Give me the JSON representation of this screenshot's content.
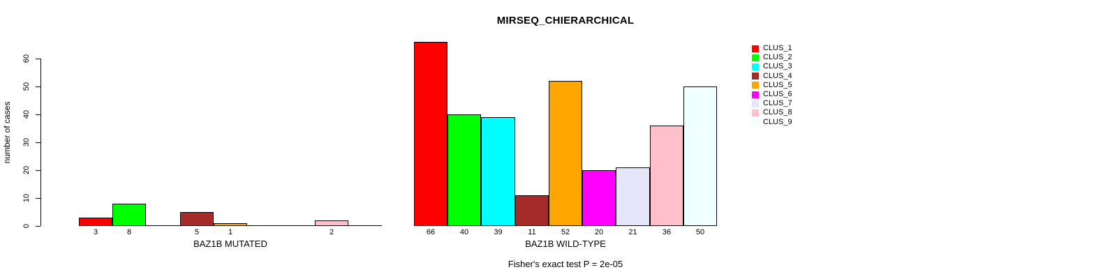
{
  "title": "MIRSEQ_CHIERARCHICAL",
  "subtitle": "Fisher's exact test P = 2e-05",
  "ylabel": "number of cases",
  "palette": [
    "#FF0000",
    "#00FF00",
    "#00FFFF",
    "#A52A2A",
    "#FFA500",
    "#FF00FF",
    "#E6E6FA",
    "#FFC0CB",
    "#F0FFFF"
  ],
  "legend": {
    "position": "right",
    "entries": [
      {
        "label": "CLUS_1",
        "color": "#FF0000"
      },
      {
        "label": "CLUS_2",
        "color": "#00FF00"
      },
      {
        "label": "CLUS_3",
        "color": "#00FFFF"
      },
      {
        "label": "CLUS_4",
        "color": "#A52A2A"
      },
      {
        "label": "CLUS_5",
        "color": "#FFA500"
      },
      {
        "label": "CLUS_6",
        "color": "#FF00FF"
      },
      {
        "label": "CLUS_7",
        "color": "#E6E6FA"
      },
      {
        "label": "CLUS_8",
        "color": "#FFC0CB"
      },
      {
        "label": "CLUS_9",
        "color": "#F0FFFF"
      }
    ]
  },
  "chart_data": [
    {
      "type": "bar",
      "title": "",
      "xlabel": "BAZ1B MUTATED",
      "ylabel": "number of cases",
      "categories": [
        "CLUS_1",
        "CLUS_2",
        "CLUS_3",
        "CLUS_4",
        "CLUS_5",
        "CLUS_6",
        "CLUS_7",
        "CLUS_8",
        "CLUS_9"
      ],
      "values": [
        3,
        8,
        0,
        5,
        1,
        0,
        0,
        2,
        0
      ],
      "bar_labels": [
        "3",
        "8",
        "",
        "5",
        "1",
        "",
        "",
        "2",
        ""
      ],
      "ylim": [
        0,
        66
      ],
      "yticks": [
        0,
        10,
        20,
        30,
        40,
        50,
        60
      ],
      "grid": false
    },
    {
      "type": "bar",
      "title": "MIRSEQ_CHIERARCHICAL",
      "xlabel": "BAZ1B WILD-TYPE",
      "ylabel": "",
      "categories": [
        "CLUS_1",
        "CLUS_2",
        "CLUS_3",
        "CLUS_4",
        "CLUS_5",
        "CLUS_6",
        "CLUS_7",
        "CLUS_8",
        "CLUS_9"
      ],
      "values": [
        66,
        40,
        39,
        11,
        52,
        20,
        21,
        36,
        50
      ],
      "bar_labels": [
        "66",
        "40",
        "39",
        "11",
        "52",
        "20",
        "21",
        "36",
        "50"
      ],
      "ylim": [
        0,
        66
      ],
      "yticks": [],
      "grid": false
    }
  ]
}
